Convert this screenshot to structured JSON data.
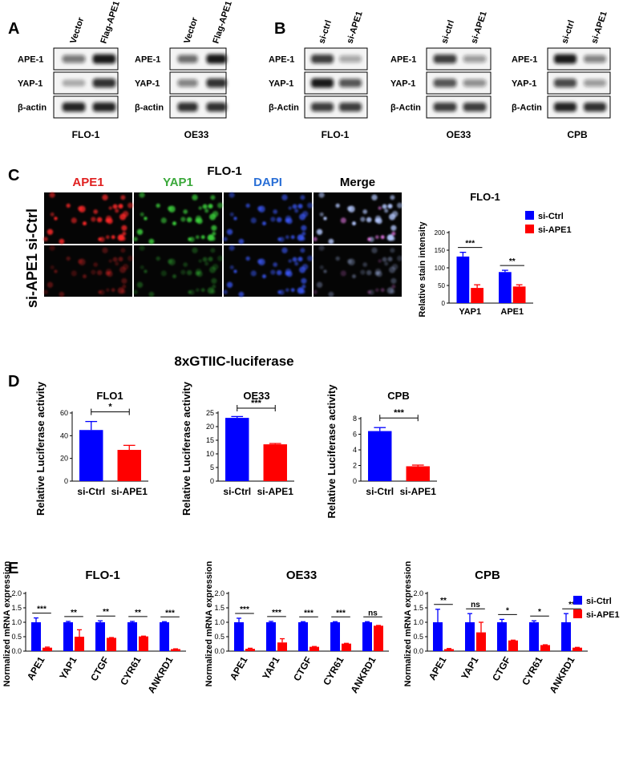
{
  "colors": {
    "blue": "#0000ff",
    "red": "#ff0000",
    "black": "#000000",
    "red_stain": "#e02020",
    "green_stain": "#3aa83a",
    "blue_stain": "#2a6fd6"
  },
  "panels": {
    "A": {
      "letter": "A",
      "blots": [
        {
          "cell_line": "FLO-1",
          "lanes": [
            "Vector",
            "Flag-APE1"
          ],
          "rows": [
            "APE-1",
            "YAP-1",
            "β-actin"
          ]
        },
        {
          "cell_line": "OE33",
          "lanes": [
            "Vector",
            "Flag-APE1"
          ],
          "rows": [
            "APE-1",
            "YAP-1",
            "β-actin"
          ]
        }
      ]
    },
    "B": {
      "letter": "B",
      "blots": [
        {
          "cell_line": "FLO-1",
          "lanes": [
            "si-ctrl",
            "si-APE1"
          ],
          "rows": [
            "APE-1",
            "YAP-1",
            "β-Actin"
          ]
        },
        {
          "cell_line": "OE33",
          "lanes": [
            "si-ctrl",
            "si-APE1"
          ],
          "rows": [
            "APE-1",
            "YAP-1",
            "β-Actin"
          ]
        },
        {
          "cell_line": "CPB",
          "lanes": [
            "si-ctrl",
            "si-APE1"
          ],
          "rows": [
            "APE-1",
            "YAP-1",
            "β-Actin"
          ]
        }
      ]
    },
    "C": {
      "letter": "C",
      "cell_line": "FLO-1",
      "channels": [
        "APE1",
        "YAP1",
        "DAPI",
        "Merge"
      ],
      "row_labels": [
        "si-Ctrl",
        "si-APE1"
      ]
    },
    "D": {
      "letter": "D",
      "title": "8xGTIIC-luciferase"
    },
    "E": {
      "letter": "E"
    }
  },
  "chart_data": [
    {
      "id": "C-quant",
      "type": "bar",
      "title": "FLO-1",
      "ylabel": "Relative stain intensity",
      "categories": [
        "YAP1",
        "APE1"
      ],
      "series": [
        {
          "name": "si-Ctrl",
          "values": [
            132,
            88
          ],
          "errors": [
            12,
            5
          ]
        },
        {
          "name": "si-APE1",
          "values": [
            43,
            47
          ],
          "errors": [
            9,
            5
          ]
        }
      ],
      "ylim": [
        0,
        200
      ],
      "yticks": [
        "0",
        "50",
        "100",
        "150",
        "200"
      ],
      "significance": [
        "***",
        "**"
      ],
      "legend": "top-right"
    },
    {
      "id": "D-FLO1",
      "type": "bar",
      "title": "FLO1",
      "ylabel": "Relative Luciferase activity",
      "categories": [
        "si-Ctrl",
        "si-APE1"
      ],
      "values": [
        45,
        27.5
      ],
      "errors": [
        7.5,
        4
      ],
      "ylim": [
        0,
        60
      ],
      "yticks": [
        "0",
        "20",
        "40",
        "60"
      ],
      "significance": "*"
    },
    {
      "id": "D-OE33",
      "type": "bar",
      "title": "OE33",
      "ylabel": "Relative Luciferase activity",
      "categories": [
        "si-Ctrl",
        "si-APE1"
      ],
      "values": [
        23.2,
        13.5
      ],
      "errors": [
        0.5,
        0.3
      ],
      "ylim": [
        0,
        25
      ],
      "yticks": [
        "0",
        "5",
        "10",
        "15",
        "20",
        "25"
      ],
      "significance": "***"
    },
    {
      "id": "D-CPB",
      "type": "bar",
      "title": "CPB",
      "ylabel": "Relative Luciferase activity",
      "categories": [
        "si-Ctrl",
        "si-APE1"
      ],
      "values": [
        6.4,
        1.9
      ],
      "errors": [
        0.45,
        0.15
      ],
      "ylim": [
        0,
        8
      ],
      "yticks": [
        "0",
        "2",
        "4",
        "6",
        "8"
      ],
      "significance": "***"
    },
    {
      "id": "E-FLO1",
      "type": "bar",
      "title": "FLO-1",
      "ylabel": "Normalized mRNA expression",
      "categories": [
        "APE1",
        "YAP1",
        "CTGF",
        "CYR61",
        "ANKRD1"
      ],
      "series": [
        {
          "name": "si-Ctrl",
          "values": [
            1.0,
            1.0,
            1.0,
            1.0,
            1.0
          ],
          "errors": [
            0.15,
            0.03,
            0.05,
            0.03,
            0.02
          ]
        },
        {
          "name": "si-APE1",
          "values": [
            0.12,
            0.5,
            0.46,
            0.51,
            0.07
          ],
          "errors": [
            0.02,
            0.24,
            0.01,
            0.01,
            0.01
          ]
        }
      ],
      "ylim": [
        0,
        2.0
      ],
      "yticks": [
        "0.0",
        "0.5",
        "1.0",
        "1.5",
        "2.0"
      ],
      "significance": [
        "***",
        "**",
        "**",
        "**",
        "***"
      ]
    },
    {
      "id": "E-OE33",
      "type": "bar",
      "title": "OE33",
      "ylabel": "Normalized mRNA expression",
      "categories": [
        "APE1",
        "YAP1",
        "CTGF",
        "CYR61",
        "ANKRD1"
      ],
      "series": [
        {
          "name": "si-Ctrl",
          "values": [
            1.0,
            1.0,
            1.0,
            1.0,
            1.0
          ],
          "errors": [
            0.14,
            0.03,
            0.02,
            0.02,
            0.02
          ]
        },
        {
          "name": "si-APE1",
          "values": [
            0.08,
            0.3,
            0.15,
            0.26,
            0.88
          ],
          "errors": [
            0.02,
            0.13,
            0.01,
            0.01,
            0.01
          ]
        }
      ],
      "ylim": [
        0,
        2.0
      ],
      "yticks": [
        "0.0",
        "0.5",
        "1.0",
        "1.5",
        "2.0"
      ],
      "significance": [
        "***",
        "***",
        "***",
        "***",
        "ns"
      ]
    },
    {
      "id": "E-CPB",
      "type": "bar",
      "title": "CPB",
      "ylabel": "Normalized mRNA expression",
      "categories": [
        "APE1",
        "YAP1",
        "CTGF",
        "CYR61",
        "ANKRD1"
      ],
      "series": [
        {
          "name": "si-Ctrl",
          "values": [
            1.0,
            1.0,
            1.0,
            1.0,
            1.0
          ],
          "errors": [
            0.45,
            0.3,
            0.1,
            0.05,
            0.3
          ]
        },
        {
          "name": "si-APE1",
          "values": [
            0.07,
            0.65,
            0.37,
            0.21,
            0.12
          ],
          "errors": [
            0.02,
            0.35,
            0.01,
            0.01,
            0.01
          ]
        }
      ],
      "ylim": [
        0,
        2.0
      ],
      "yticks": [
        "0.0",
        "0.5",
        "1.0",
        "1.5",
        "2.0"
      ],
      "significance": [
        "**",
        "ns",
        "*",
        "*",
        "**"
      ],
      "legend": "top-right"
    }
  ]
}
